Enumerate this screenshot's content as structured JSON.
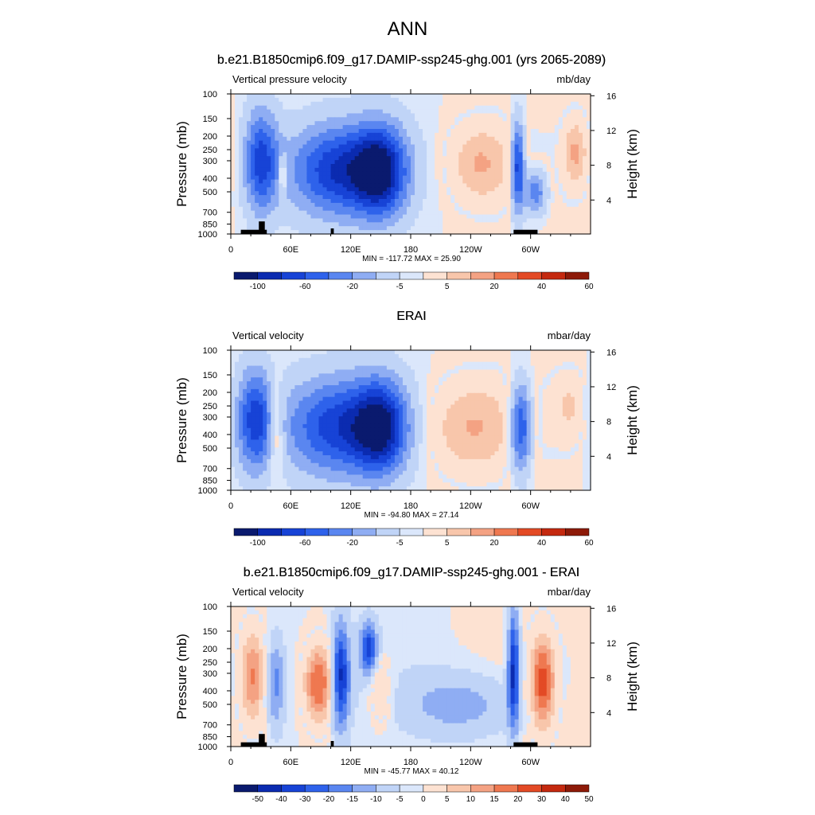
{
  "figure": {
    "title": "ANN"
  },
  "colors": {
    "diverging_13": [
      "#0a1a6e",
      "#0b2bb0",
      "#1743d6",
      "#2e62eb",
      "#5a86f0",
      "#8fadf3",
      "#c0d4f7",
      "#dbe7fb",
      "#fde2d2",
      "#f8c6ab",
      "#f4a283",
      "#ef7850",
      "#e34a25",
      "#c4290f",
      "#8d1a08"
    ],
    "terrain": "#000000"
  },
  "chart_data": [
    {
      "type": "heatmap",
      "title": "b.e21.B1850cmip6.f09_g17.DAMIP-ssp245-ghg.001 (yrs 2065-2089)",
      "left_label": "Vertical pressure velocity",
      "right_label": "mb/day",
      "ylabel": "Pressure (mb)",
      "ylabel_right": "Height (km)",
      "yticks": [
        "100",
        "150",
        "200",
        "250",
        "300",
        "400",
        "500",
        "700",
        "850",
        "1000"
      ],
      "yticks_right": [
        "16",
        "12",
        "8",
        "4"
      ],
      "xticks": [
        "0",
        "60E",
        "120E",
        "180",
        "120W",
        "60W"
      ],
      "stats": "MIN = -117.72  MAX =  25.90",
      "colorbar_labels": [
        "-100",
        "-60",
        "-20",
        "-5",
        "5",
        "20",
        "40",
        "60"
      ],
      "features": [
        {
          "lon": 30,
          "lev": 0.48,
          "w": 12,
          "h": 0.8,
          "v": -0.7
        },
        {
          "lon": 52,
          "lev": 0.58,
          "w": 3,
          "h": 0.3,
          "v": 0.4
        },
        {
          "lon": 110,
          "lev": 0.55,
          "w": 36,
          "h": 0.7,
          "v": -0.75
        },
        {
          "lon": 150,
          "lev": 0.55,
          "w": 18,
          "h": 0.7,
          "v": -0.75
        },
        {
          "lon": 250,
          "lev": 0.5,
          "w": 22,
          "h": 0.6,
          "v": 0.35
        },
        {
          "lon": 287,
          "lev": 0.52,
          "w": 5,
          "h": 0.7,
          "v": -0.8
        },
        {
          "lon": 305,
          "lev": 0.7,
          "w": 8,
          "h": 0.35,
          "v": -0.5
        },
        {
          "lon": 345,
          "lev": 0.42,
          "w": 8,
          "h": 0.5,
          "v": 0.35
        }
      ],
      "terrain": [
        [
          10,
          0.97,
          26
        ],
        [
          28,
          0.91,
          6
        ],
        [
          100,
          0.96,
          3
        ],
        [
          283,
          0.97,
          24
        ]
      ]
    },
    {
      "type": "heatmap",
      "title": "ERAI",
      "left_label": "Vertical velocity",
      "right_label": "mbar/day",
      "ylabel": "Pressure (mb)",
      "ylabel_right": "Height (km)",
      "yticks": [
        "100",
        "150",
        "200",
        "250",
        "300",
        "400",
        "500",
        "700",
        "850",
        "1000"
      ],
      "yticks_right": [
        "16",
        "12",
        "8",
        "4"
      ],
      "xticks": [
        "0",
        "60E",
        "120E",
        "180",
        "120W",
        "60W"
      ],
      "stats": "MIN = -94.80  MAX =  27.14",
      "colorbar_labels": [
        "-100",
        "-60",
        "-20",
        "-5",
        "5",
        "20",
        "40",
        "60"
      ],
      "features": [
        {
          "lon": 24,
          "lev": 0.5,
          "w": 14,
          "h": 0.8,
          "v": -0.7
        },
        {
          "lon": 45,
          "lev": 0.55,
          "w": 6,
          "h": 0.7,
          "v": 0.4
        },
        {
          "lon": 110,
          "lev": 0.55,
          "w": 40,
          "h": 0.75,
          "v": -0.7
        },
        {
          "lon": 150,
          "lev": 0.55,
          "w": 18,
          "h": 0.7,
          "v": -0.7
        },
        {
          "lon": 240,
          "lev": 0.55,
          "w": 32,
          "h": 0.7,
          "v": 0.35
        },
        {
          "lon": 290,
          "lev": 0.55,
          "w": 8,
          "h": 0.7,
          "v": -0.75
        },
        {
          "lon": 340,
          "lev": 0.4,
          "w": 12,
          "h": 0.5,
          "v": 0.2
        }
      ],
      "terrain": []
    },
    {
      "type": "heatmap",
      "title": "b.e21.B1850cmip6.f09_g17.DAMIP-ssp245-ghg.001 - ERAI",
      "left_label": "Vertical velocity",
      "right_label": "mbar/day",
      "ylabel": "Pressure (mb)",
      "ylabel_right": "Height (km)",
      "yticks": [
        "100",
        "150",
        "200",
        "250",
        "300",
        "400",
        "500",
        "700",
        "850",
        "1000"
      ],
      "yticks_right": [
        "16",
        "12",
        "8",
        "4"
      ],
      "xticks": [
        "0",
        "60E",
        "120E",
        "180",
        "120W",
        "60W"
      ],
      "stats": "MIN = -45.77  MAX =  40.12",
      "colorbar_labels": [
        "-50",
        "-40",
        "-30",
        "-20",
        "-15",
        "-10",
        "-5",
        "0",
        "5",
        "10",
        "15",
        "20",
        "30",
        "40",
        "50"
      ],
      "features": [
        {
          "lon": 22,
          "lev": 0.5,
          "w": 8,
          "h": 0.7,
          "v": 0.5
        },
        {
          "lon": 45,
          "lev": 0.55,
          "w": 6,
          "h": 0.7,
          "v": -0.4
        },
        {
          "lon": 88,
          "lev": 0.55,
          "w": 10,
          "h": 0.6,
          "v": 0.7
        },
        {
          "lon": 110,
          "lev": 0.5,
          "w": 6,
          "h": 0.8,
          "v": -0.8
        },
        {
          "lon": 138,
          "lev": 0.3,
          "w": 6,
          "h": 0.4,
          "v": -0.7
        },
        {
          "lon": 150,
          "lev": 0.6,
          "w": 8,
          "h": 0.5,
          "v": 0.3
        },
        {
          "lon": 230,
          "lev": 0.7,
          "w": 40,
          "h": 0.5,
          "v": -0.3
        },
        {
          "lon": 283,
          "lev": 0.45,
          "w": 4,
          "h": 0.9,
          "v": -0.85
        },
        {
          "lon": 312,
          "lev": 0.55,
          "w": 8,
          "h": 0.7,
          "v": 0.7
        }
      ],
      "terrain": [
        [
          10,
          0.97,
          26
        ],
        [
          28,
          0.91,
          6
        ],
        [
          100,
          0.96,
          3
        ],
        [
          283,
          0.97,
          24
        ]
      ]
    }
  ]
}
